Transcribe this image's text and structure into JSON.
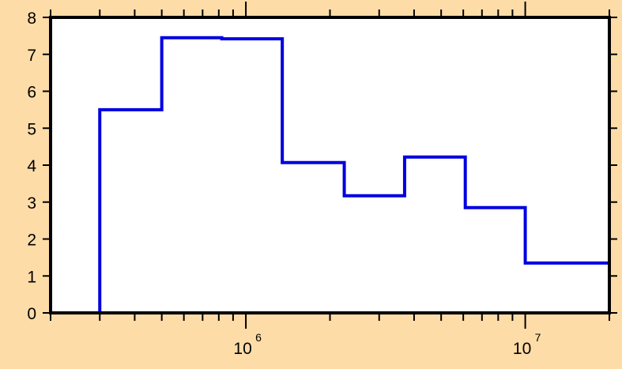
{
  "chart_data": {
    "type": "histogram-step",
    "x_scale": "log",
    "xlim": [
      200000,
      20000000
    ],
    "ylim": [
      0,
      8
    ],
    "y_ticks": [
      0,
      1,
      2,
      3,
      4,
      5,
      6,
      7,
      8
    ],
    "x_major_ticks": [
      {
        "value": 1000000,
        "base": "10",
        "exp": "6"
      },
      {
        "value": 10000000,
        "base": "10",
        "exp": "7"
      }
    ],
    "bin_edges": [
      300000,
      500000,
      820000,
      1350000,
      2250000,
      3700000,
      6100000,
      10000000,
      20000000
    ],
    "values": [
      5.5,
      7.45,
      7.42,
      4.07,
      3.17,
      4.22,
      2.85,
      1.35
    ],
    "grid": false,
    "colors": {
      "line": "#0000E0",
      "background": "#FDDCA8",
      "plot_area": "#FFFFFF",
      "axis": "#000000"
    }
  }
}
